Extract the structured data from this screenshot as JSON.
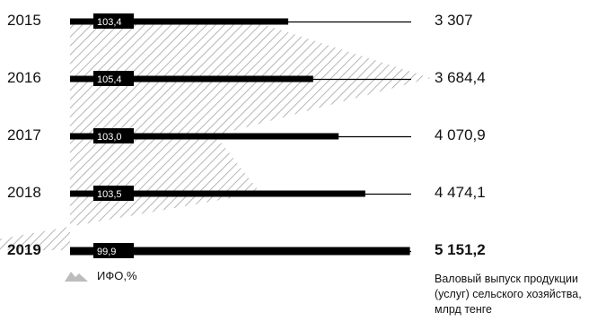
{
  "chart_data": {
    "type": "bar",
    "categories": [
      "2015",
      "2016",
      "2017",
      "2018",
      "2019"
    ],
    "highlight_category": "2019",
    "series": [
      {
        "name": "Валовый выпуск продукции (услуг) сельского хозяйства, млрд тенге",
        "values": [
          3307,
          3684.4,
          4070.9,
          4474.1,
          5151.2
        ],
        "value_labels": [
          "3 307",
          "3 684,4",
          "4 070,9",
          "4 474,1",
          "5 151,2"
        ]
      },
      {
        "name": "ИФО,%",
        "values": [
          103.4,
          105.4,
          103.0,
          103.5,
          99.9
        ],
        "value_labels": [
          "103,4",
          "105,4",
          "103,0",
          "103,5",
          "99,9"
        ]
      }
    ],
    "colors": {
      "bar": "#000000",
      "hatch": "#a3a3a3",
      "legend_icon": "#bcbcbc"
    }
  },
  "legend": {
    "ifo_label": "ИФО,%"
  },
  "caption": "Валовый выпуск продукции (услуг) сельского хозяйства, млрд тенге"
}
